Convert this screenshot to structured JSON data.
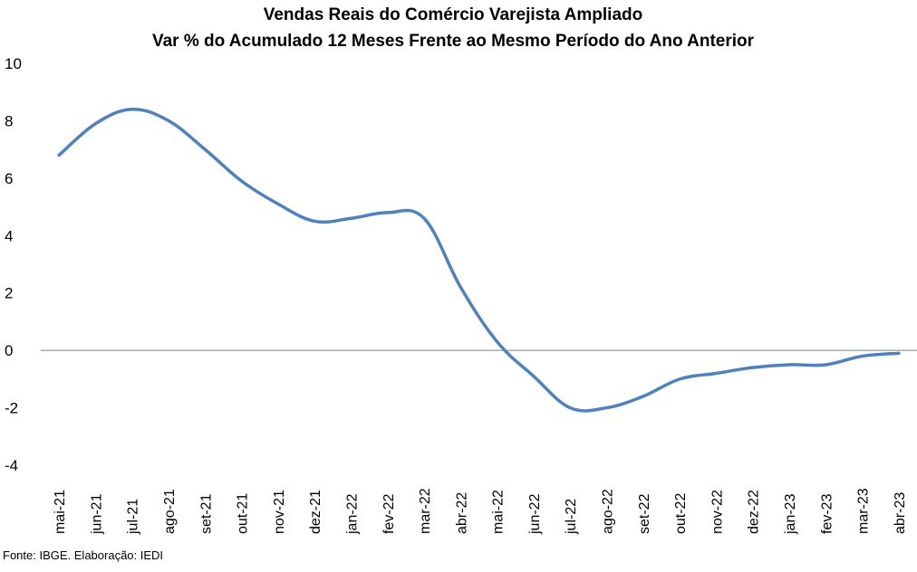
{
  "chart_data": {
    "type": "line",
    "title": "Vendas Reais do Comércio Varejista Ampliado",
    "subtitle": "Var % do Acumulado 12 Meses Frente ao Mesmo Período do Ano Anterior",
    "xlabel": "",
    "ylabel": "",
    "ylim": [
      -4,
      10
    ],
    "yticks": [
      10,
      8,
      6,
      4,
      2,
      0,
      -2,
      -4
    ],
    "grid": false,
    "legend": "none",
    "line_color": "#4F81BD",
    "categories": [
      "mai-21",
      "jun-21",
      "jul-21",
      "ago-21",
      "set-21",
      "out-21",
      "nov-21",
      "dez-21",
      "jan-22",
      "fev-22",
      "mar-22",
      "abr-22",
      "mai-22",
      "jun-22",
      "jul-22",
      "ago-22",
      "set-22",
      "out-22",
      "nov-22",
      "dez-22",
      "jan-23",
      "fev-23",
      "mar-23",
      "abr-23"
    ],
    "series": [
      {
        "values": [
          6.8,
          7.9,
          8.4,
          8.0,
          7.0,
          5.9,
          5.1,
          4.5,
          4.6,
          4.8,
          4.6,
          2.2,
          0.3,
          -0.9,
          -2.0,
          -2.0,
          -1.6,
          -1.0,
          -0.8,
          -0.6,
          -0.5,
          -0.5,
          -0.2,
          -0.1
        ]
      }
    ]
  },
  "footer": {
    "source": "Fonte: IBGE. Elaboração: IEDI"
  }
}
